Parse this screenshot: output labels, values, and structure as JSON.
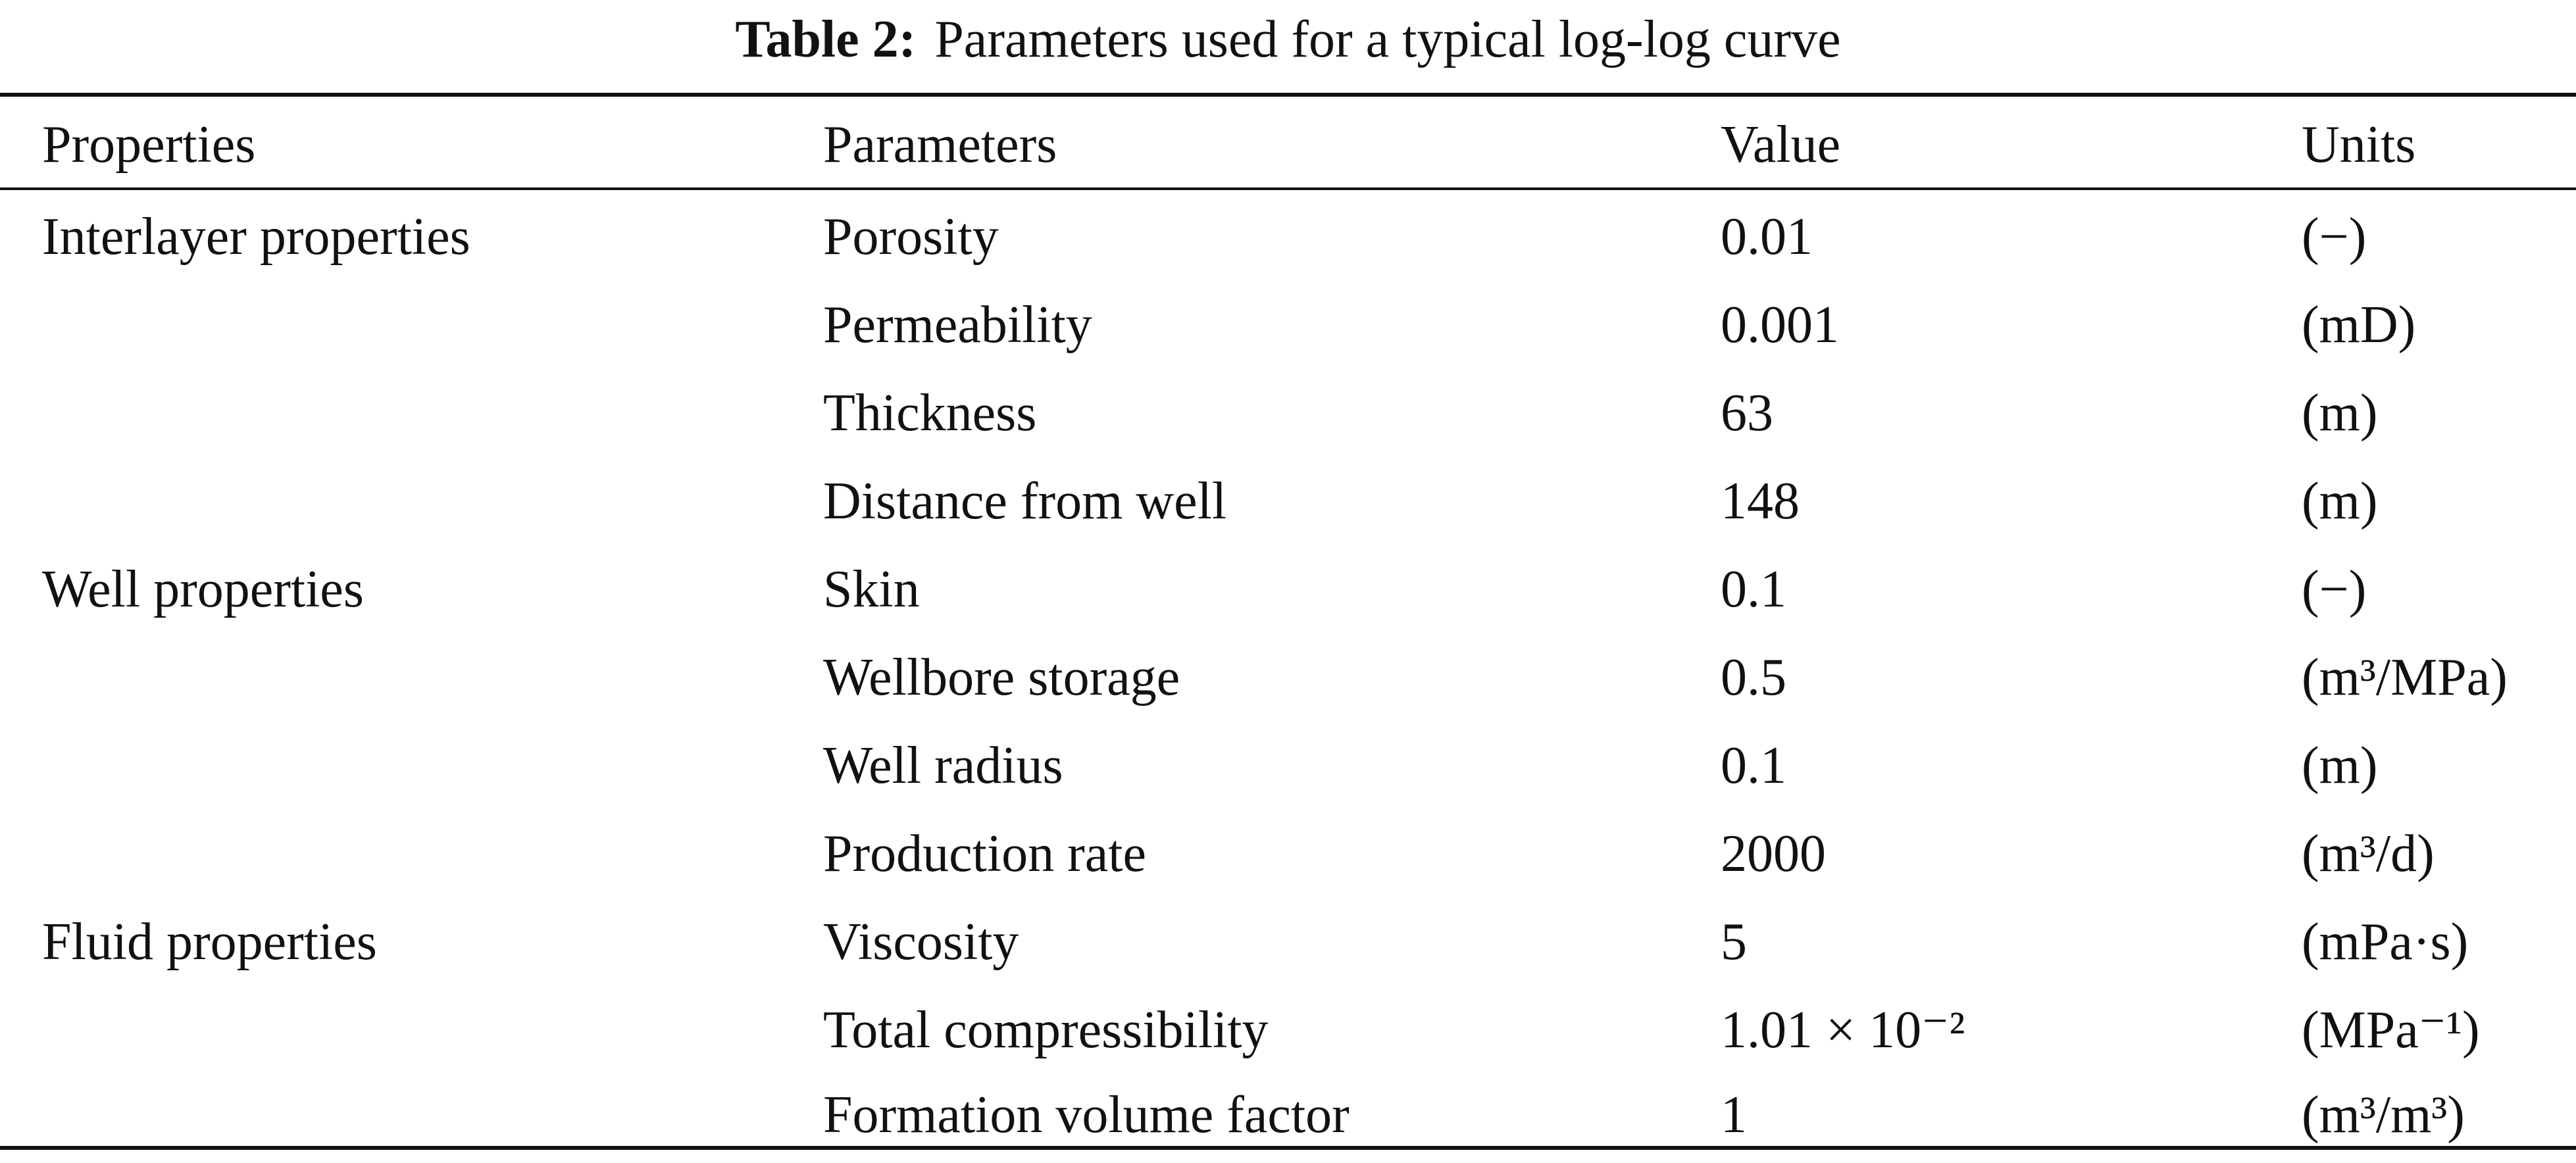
{
  "caption": {
    "label": "Table 2:",
    "text": "Parameters used for a typical log-log curve"
  },
  "header": {
    "properties": "Properties",
    "parameters": "Parameters",
    "value": "Value",
    "units": "Units"
  },
  "rows": [
    {
      "property": "Interlayer properties",
      "parameter": "Porosity",
      "value": "0.01",
      "unit": "(−)"
    },
    {
      "property": "",
      "parameter": "Permeability",
      "value": "0.001",
      "unit": "(mD)"
    },
    {
      "property": "",
      "parameter": "Thickness",
      "value": "63",
      "unit": "(m)"
    },
    {
      "property": "",
      "parameter": "Distance from well",
      "value": "148",
      "unit": "(m)"
    },
    {
      "property": "Well properties",
      "parameter": "Skin",
      "value": "0.1",
      "unit": "(−)"
    },
    {
      "property": "",
      "parameter": "Wellbore storage",
      "value": "0.5",
      "unit": "(m³/MPa)"
    },
    {
      "property": "",
      "parameter": "Well radius",
      "value": "0.1",
      "unit": "(m)"
    },
    {
      "property": "",
      "parameter": "Production rate",
      "value": "2000",
      "unit": "(m³/d)"
    },
    {
      "property": "Fluid properties",
      "parameter": "Viscosity",
      "value": "5",
      "unit": "(mPa·s)"
    },
    {
      "property": "",
      "parameter": "Total compressibility",
      "value": "1.01 × 10⁻²",
      "unit": "(MPa⁻¹)"
    },
    {
      "property": "",
      "parameter": "Formation volume factor",
      "value": "1",
      "unit": "(m³/m³)"
    }
  ]
}
